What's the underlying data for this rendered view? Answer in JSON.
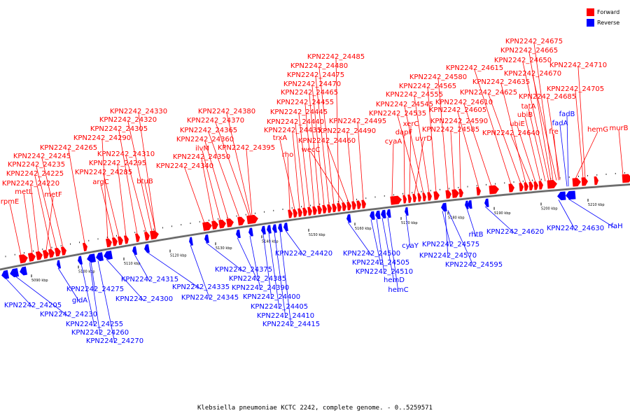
{
  "legend": [
    {
      "label": "Forward",
      "color": "#ff0000"
    },
    {
      "label": "Reverse",
      "color": "#0000ff"
    }
  ],
  "caption": "Klebsiella pneumoniae KCTC 2242, complete genome. - 0..5259571",
  "scale_labels": [
    "5090 kbp",
    "5100 kbp",
    "5110 kbp",
    "5120 kbp",
    "5130 kbp",
    "5140 kbp",
    "5150 kbp",
    "5160 kbp",
    "5170 kbp",
    "5180 kbp",
    "5190 kbp",
    "5200 kbp",
    "5210 kbp"
  ],
  "forward_labels": [
    "rpmE",
    "metL",
    "KPN2242_24220",
    "metF",
    "KPN2242_24225",
    "KPN2242_24235",
    "KPN2242_24245",
    "KPN2242_24265",
    "KPN2242_24290",
    "argC",
    "KPN2242_24285",
    "KPN2242_24295",
    "KPN2242_24305",
    "KPN2242_24310",
    "KPN2242_24320",
    "KPN2242_24330",
    "btuB",
    "KPN2242_24340",
    "KPN2242_24350",
    "ilvM",
    "KPN2242_24360",
    "KPN2242_24365",
    "KPN2242_24370",
    "KPN2242_24380",
    "KPN2242_24395",
    "rho",
    "trxA",
    "KPN2242_24435",
    "KPN2242_24440",
    "KPN2242_24445",
    "KPN2242_24455",
    "KPN2242_24465",
    "KPN2242_24470",
    "KPN2242_24475",
    "KPN2242_24480",
    "KPN2242_24485",
    "wecC",
    "KPN2242_24460",
    "KPN2242_24490",
    "KPN2242_24495",
    "cyaA",
    "dapF",
    "xerC",
    "uvrD",
    "KPN2242_24535",
    "KPN2242_24545",
    "KPN2242_24555",
    "KPN2242_24565",
    "KPN2242_24580",
    "KPN2242_24585",
    "KPN2242_24590",
    "KPN2242_24605",
    "KPN2242_24610",
    "KPN2242_24615",
    "KPN2242_24625",
    "KPN2242_24635",
    "KPN2242_24640",
    "ubiE",
    "ubiB",
    "tatA",
    "KPN2242_24650",
    "KPN2242_24665",
    "KPN2242_24675",
    "KPN2242_24670",
    "KPN2242_24685",
    "fre",
    "hemG",
    "KPN2242_24705",
    "KPN2242_24710",
    "murB"
  ],
  "reverse_labels": [
    "KPN2242_24205",
    "KPN2242_24230",
    "gldA",
    "KPN2242_24255",
    "KPN2242_24260",
    "KPN2242_24270",
    "KPN2242_24275",
    "KPN2242_24300",
    "KPN2242_24315",
    "KPN2242_24335",
    "KPN2242_24345",
    "KPN2242_24375",
    "KPN2242_24385",
    "KPN2242_24390",
    "KPN2242_24400",
    "KPN2242_24405",
    "KPN2242_24410",
    "KPN2242_24415",
    "KPN2242_24420",
    "KPN2242_24500",
    "KPN2242_24505",
    "KPN2242_24510",
    "hemD",
    "hemC",
    "cyaY",
    "KPN2242_24575",
    "KPN2242_24570",
    "KPN2242_24595",
    "rhtB",
    "KPN2242_24620",
    "KPN2242_24630",
    "rfaH",
    "fadA",
    "fadB"
  ]
}
